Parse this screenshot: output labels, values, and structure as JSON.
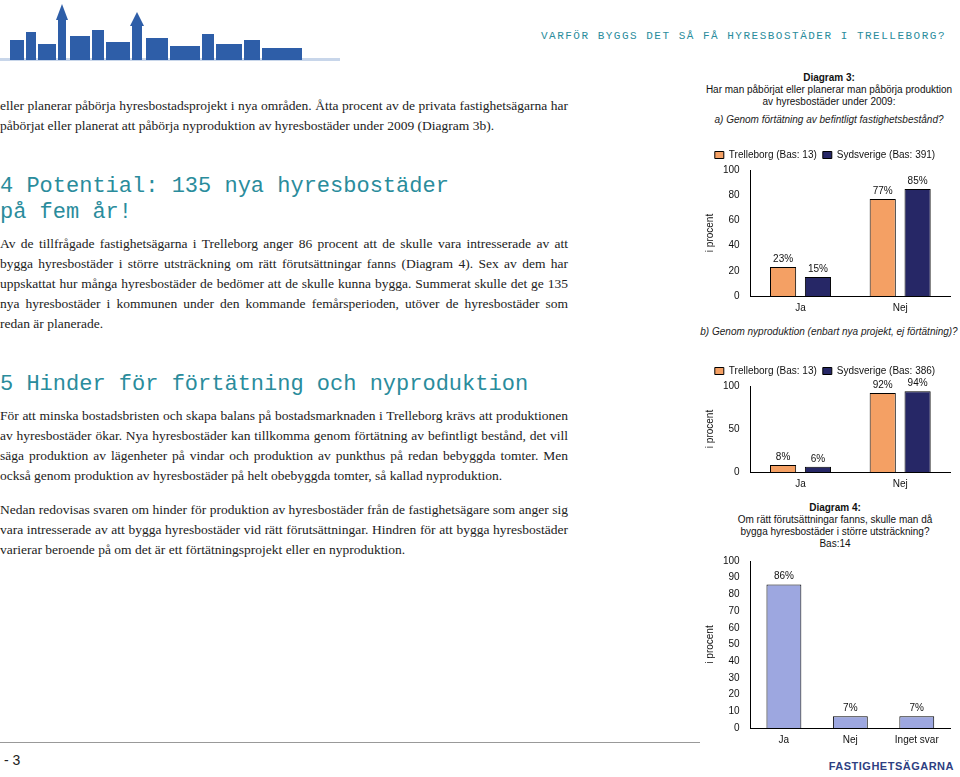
{
  "header": {
    "running_title": "VARFÖR BYGGS DET SÅ FÅ HYRESBOSTÄDER I TRELLEBORG?"
  },
  "intro": "eller planerar påbörja hyresbostadsprojekt i nya områden. Åtta procent av de privata fastighetsägarna har påbörjat eller planerat att påbörja nyproduktion av hyresbostäder under 2009 (Diagram 3b).",
  "sections": [
    {
      "heading": "4 Potential: 135 nya hyresbostäder på fem år!",
      "paragraphs": [
        "Av de tillfrågade fastighetsägarna i Trelleborg anger 86 procent att de skulle vara intresserade av att bygga hyresbostäder i större utsträckning om rätt förutsättningar fanns (Diagram 4). Sex av dem har uppskattat hur många hyresbostäder de bedömer att de skulle kunna bygga. Summerat skulle det ge 135 nya hyresbostäder i kommunen under den kommande femårsperioden, utöver de hyresbostäder som redan är planerade."
      ]
    },
    {
      "heading": "5 Hinder för förtätning och nyproduktion",
      "paragraphs": [
        "För att minska bostadsbristen och skapa balans på bostadsmarknaden i Trelleborg krävs att produktionen av hyresbostäder ökar. Nya hyresbostäder kan tillkomma genom förtätning av befintligt bestånd, det vill säga produktion av lägenheter på vindar och produktion av punkthus på redan bebyggda tomter. Men också genom produktion av hyresbostäder på helt obebyggda tomter, så kallad nyproduktion.",
        "Nedan redovisas svaren om hinder för produktion av hyresbostäder från de fastighetsägare som anger sig vara intresserade av att bygga hyresbostäder vid rätt förutsättningar. Hindren för att bygga hyresbostäder varierar beroende på om det är ett förtätningsprojekt eller en nyproduktion."
      ]
    }
  ],
  "chart_data": [
    {
      "type": "bar",
      "title": "Diagram 3:",
      "subtitle": "Har man påbörjat eller planerar man påbörja produktion av hyresbostäder under 2009:",
      "question": "a) Genom förtätning av befintligt fastighetsbestånd?",
      "categories": [
        "Ja",
        "Nej"
      ],
      "series": [
        {
          "name": "Trelleborg (Bas: 13)",
          "color": "#f4a064",
          "values": [
            23,
            77
          ],
          "value_labels": [
            "23%",
            "77%"
          ]
        },
        {
          "name": "Sydsverige (Bas: 391)",
          "color": "#262766",
          "values": [
            15,
            85
          ],
          "value_labels": [
            "15%",
            "85%"
          ]
        }
      ],
      "ylabel": "i procent",
      "ylim": [
        0,
        100
      ],
      "yticks": [
        0,
        20,
        40,
        60,
        80,
        100
      ],
      "grid": false,
      "legend": "top",
      "data_labels": true
    },
    {
      "type": "bar",
      "question": "b) Genom nyproduktion (enbart nya projekt, ej förtätning)?",
      "categories": [
        "Ja",
        "Nej"
      ],
      "series": [
        {
          "name": "Trelleborg (Bas: 13)",
          "color": "#f4a064",
          "values": [
            8,
            92
          ],
          "value_labels": [
            "8%",
            "92%"
          ]
        },
        {
          "name": "Sydsverige (Bas: 386)",
          "color": "#262766",
          "values": [
            6,
            94
          ],
          "value_labels": [
            "6%",
            "94%"
          ]
        }
      ],
      "ylabel": "i procent",
      "ylim": [
        0,
        100
      ],
      "yticks": [
        0,
        50,
        100
      ],
      "grid": false,
      "legend": "top",
      "data_labels": true
    },
    {
      "type": "bar",
      "title": "Diagram 4:",
      "subtitle": "Om rätt förutsättningar fanns, skulle man då bygga hyresbostäder i större utsträckning? Bas:14",
      "categories": [
        "Ja",
        "Nej",
        "Inget svar"
      ],
      "series": [
        {
          "name": "Bas:14",
          "color": "#9da7e0",
          "values": [
            86,
            7,
            7
          ],
          "value_labels": [
            "86%",
            "7%",
            "7%"
          ]
        }
      ],
      "ylabel": "i procent",
      "ylim": [
        0,
        100
      ],
      "yticks": [
        0,
        10,
        20,
        30,
        40,
        50,
        60,
        70,
        80,
        90,
        100
      ],
      "grid": false,
      "data_labels": true
    }
  ],
  "footer": {
    "page": "- 3",
    "logo": "FASTIGHETSÄGARNA"
  }
}
